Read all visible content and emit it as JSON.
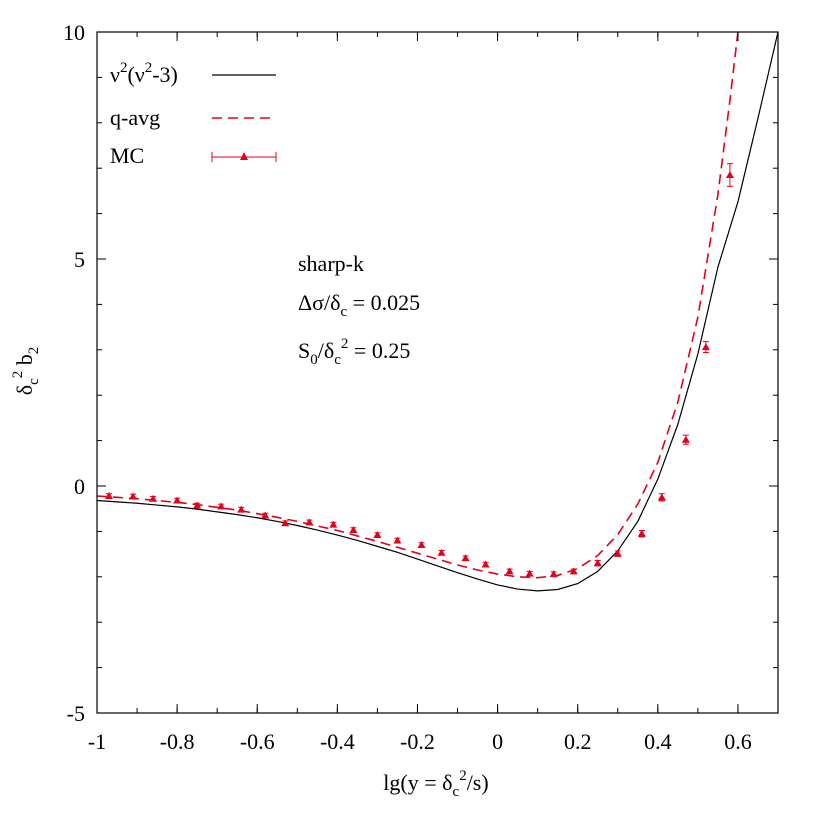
{
  "chart_data": {
    "type": "line",
    "xlabel": "lg(y = δc²/s)",
    "ylabel": "δc² b2",
    "xlim": [
      -1,
      0.7
    ],
    "ylim": [
      -5,
      10
    ],
    "x_ticks": [
      -1,
      -0.8,
      -0.6,
      -0.4,
      -0.2,
      0,
      0.2,
      0.4,
      0.6
    ],
    "x_tick_labels": [
      "-1",
      "-0.8",
      "-0.6",
      "-0.4",
      "-0.2",
      "0",
      "0.2",
      "0.4",
      "0.6"
    ],
    "y_ticks": [
      -5,
      0,
      5,
      10
    ],
    "y_tick_labels": [
      "-5",
      "0",
      "5",
      "10"
    ],
    "grid": false,
    "legend_position": "top-left",
    "annotations": [
      "sharp-k",
      "Δσ/δc = 0.025",
      "S0/δc² = 0.25"
    ],
    "series": [
      {
        "name": "ν²(ν²-3)",
        "style": "solid",
        "color": "#000000",
        "x": [
          -1.0,
          -0.95,
          -0.9,
          -0.85,
          -0.8,
          -0.75,
          -0.7,
          -0.65,
          -0.6,
          -0.55,
          -0.5,
          -0.45,
          -0.4,
          -0.35,
          -0.3,
          -0.25,
          -0.2,
          -0.15,
          -0.1,
          -0.05,
          0.0,
          0.05,
          0.1,
          0.15,
          0.2,
          0.25,
          0.3,
          0.35,
          0.4,
          0.45,
          0.5,
          0.55,
          0.6,
          0.65,
          0.7
        ],
        "y": [
          -0.32,
          -0.35,
          -0.38,
          -0.42,
          -0.46,
          -0.51,
          -0.57,
          -0.63,
          -0.7,
          -0.78,
          -0.87,
          -0.97,
          -1.08,
          -1.2,
          -1.33,
          -1.46,
          -1.61,
          -1.76,
          -1.91,
          -2.05,
          -2.18,
          -2.27,
          -2.31,
          -2.28,
          -2.15,
          -1.88,
          -1.43,
          -0.78,
          0.15,
          1.36,
          2.91,
          4.82,
          6.26,
          8.1,
          10.0
        ]
      },
      {
        "name": "q-avg",
        "style": "dashed",
        "color": "#e3001b",
        "x": [
          -1.0,
          -0.95,
          -0.9,
          -0.85,
          -0.8,
          -0.75,
          -0.7,
          -0.65,
          -0.6,
          -0.55,
          -0.5,
          -0.45,
          -0.4,
          -0.35,
          -0.3,
          -0.25,
          -0.2,
          -0.15,
          -0.1,
          -0.05,
          0.0,
          0.05,
          0.1,
          0.15,
          0.2,
          0.25,
          0.3,
          0.35,
          0.4,
          0.45,
          0.5,
          0.55,
          0.58,
          0.6
        ],
        "y": [
          -0.22,
          -0.25,
          -0.28,
          -0.32,
          -0.36,
          -0.41,
          -0.47,
          -0.53,
          -0.61,
          -0.69,
          -0.78,
          -0.88,
          -0.98,
          -1.1,
          -1.22,
          -1.35,
          -1.48,
          -1.61,
          -1.74,
          -1.85,
          -1.94,
          -2.0,
          -2.02,
          -1.97,
          -1.82,
          -1.53,
          -1.07,
          -0.4,
          0.52,
          1.85,
          3.72,
          6.42,
          8.5,
          10.0
        ]
      },
      {
        "name": "MC",
        "style": "points-errorbars",
        "color": "#e3001b",
        "x": [
          -0.97,
          -0.91,
          -0.86,
          -0.8,
          -0.75,
          -0.69,
          -0.64,
          -0.58,
          -0.53,
          -0.47,
          -0.41,
          -0.36,
          -0.3,
          -0.25,
          -0.19,
          -0.14,
          -0.08,
          -0.03,
          0.03,
          0.08,
          0.14,
          0.19,
          0.25,
          0.3,
          0.36,
          0.41,
          0.47,
          0.52,
          0.58
        ],
        "y": [
          -0.22,
          -0.23,
          -0.28,
          -0.32,
          -0.43,
          -0.45,
          -0.52,
          -0.65,
          -0.82,
          -0.8,
          -0.85,
          -0.97,
          -1.08,
          -1.2,
          -1.3,
          -1.47,
          -1.59,
          -1.73,
          -1.88,
          -1.93,
          -1.94,
          -1.88,
          -1.7,
          -1.49,
          -1.05,
          -0.25,
          1.02,
          3.06,
          6.85
        ],
        "yerr": [
          0.05,
          0.05,
          0.05,
          0.05,
          0.05,
          0.05,
          0.05,
          0.05,
          0.05,
          0.05,
          0.05,
          0.05,
          0.05,
          0.05,
          0.05,
          0.05,
          0.05,
          0.05,
          0.05,
          0.05,
          0.05,
          0.05,
          0.06,
          0.06,
          0.07,
          0.08,
          0.1,
          0.12,
          0.25
        ]
      }
    ]
  }
}
